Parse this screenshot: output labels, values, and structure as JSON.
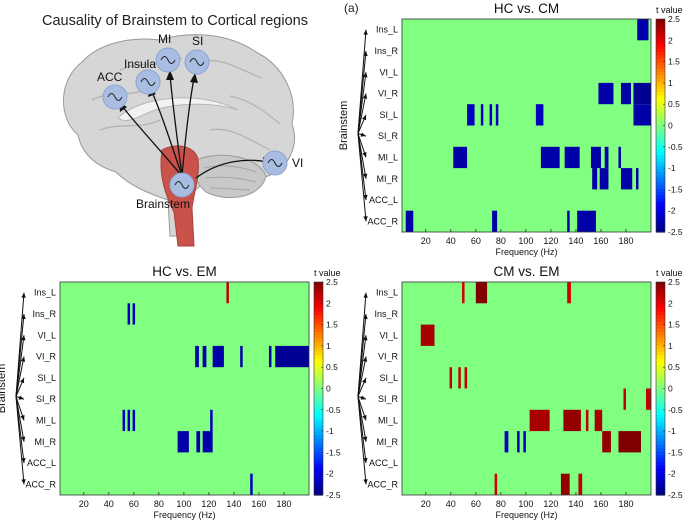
{
  "illustration": {
    "title": "Causality of Brainstem to Cortical regions",
    "panel_label": "(a)",
    "nodes": [
      "MI",
      "SI",
      "Insula",
      "ACC",
      "VI",
      "Brainstem"
    ],
    "colors": {
      "node": "#a9bde3",
      "brainstem": "#c9524a",
      "brain": "#d4d4d4",
      "arrow": "#111111"
    }
  },
  "chart_data": [
    {
      "id": "hc_cm",
      "type": "heatmap",
      "title": "HC vs. CM",
      "xlabel": "Frequency (Hz)",
      "ylabel": "Brainstem",
      "colorbar_label": "t value",
      "rows": [
        "Ins_L",
        "Ins_R",
        "VI_L",
        "VI_R",
        "SI_L",
        "SI_R",
        "MI_L",
        "MI_R",
        "ACC_L",
        "ACC_R"
      ],
      "xlim": [
        1,
        200
      ],
      "xticks": [
        20,
        40,
        60,
        80,
        100,
        120,
        140,
        160,
        180
      ],
      "clim": [
        -2.5,
        2.5
      ],
      "background_value": 0,
      "cells": [
        {
          "row": "Ins_L",
          "from": 189,
          "to": 198,
          "value": -2.3
        },
        {
          "row": "VI_R",
          "from": 158,
          "to": 170,
          "value": -2.3
        },
        {
          "row": "VI_R",
          "from": 176,
          "to": 184,
          "value": -2.3
        },
        {
          "row": "VI_R",
          "from": 186,
          "to": 200,
          "value": -2.4
        },
        {
          "row": "SI_L",
          "from": 53,
          "to": 59,
          "value": -2.2
        },
        {
          "row": "SI_L",
          "from": 64,
          "to": 66,
          "value": -2.2
        },
        {
          "row": "SI_L",
          "from": 71,
          "to": 73,
          "value": -2.2
        },
        {
          "row": "SI_L",
          "from": 76,
          "to": 78,
          "value": -2.2
        },
        {
          "row": "SI_L",
          "from": 108,
          "to": 114,
          "value": -2.2
        },
        {
          "row": "SI_L",
          "from": 186,
          "to": 200,
          "value": -2.3
        },
        {
          "row": "MI_L",
          "from": 42,
          "to": 53,
          "value": -2.3
        },
        {
          "row": "MI_L",
          "from": 112,
          "to": 127,
          "value": -2.3
        },
        {
          "row": "MI_L",
          "from": 131,
          "to": 143,
          "value": -2.3
        },
        {
          "row": "MI_L",
          "from": 152,
          "to": 160,
          "value": -2.3
        },
        {
          "row": "MI_L",
          "from": 163,
          "to": 166,
          "value": -2.3
        },
        {
          "row": "MI_L",
          "from": 174,
          "to": 176,
          "value": -2.3
        },
        {
          "row": "MI_R",
          "from": 153,
          "to": 157,
          "value": -2.3
        },
        {
          "row": "MI_R",
          "from": 159,
          "to": 166,
          "value": -2.3
        },
        {
          "row": "MI_R",
          "from": 176,
          "to": 185,
          "value": -2.3
        },
        {
          "row": "MI_R",
          "from": 188,
          "to": 190,
          "value": -2.3
        },
        {
          "row": "ACC_R",
          "from": 4,
          "to": 10,
          "value": -2.3
        },
        {
          "row": "ACC_R",
          "from": 73,
          "to": 77,
          "value": -2.3
        },
        {
          "row": "ACC_R",
          "from": 133,
          "to": 135,
          "value": -2.3
        },
        {
          "row": "ACC_R",
          "from": 141,
          "to": 156,
          "value": -2.3
        }
      ]
    },
    {
      "id": "hc_em",
      "type": "heatmap",
      "title": "HC vs. EM",
      "xlabel": "Frequency (Hz)",
      "ylabel": "Brainstem",
      "colorbar_label": "t value",
      "rows": [
        "Ins_L",
        "Ins_R",
        "VI_L",
        "VI_R",
        "SI_L",
        "SI_R",
        "MI_L",
        "MI_R",
        "ACC_L",
        "ACC_R"
      ],
      "xlim": [
        1,
        200
      ],
      "xticks": [
        20,
        40,
        60,
        80,
        100,
        120,
        140,
        160,
        180
      ],
      "clim": [
        -2.5,
        2.5
      ],
      "background_value": 0,
      "cells": [
        {
          "row": "Ins_L",
          "from": 134,
          "to": 136,
          "value": 2.2
        },
        {
          "row": "Ins_R",
          "from": 55,
          "to": 57,
          "value": -2.2
        },
        {
          "row": "Ins_R",
          "from": 59,
          "to": 61,
          "value": -2.2
        },
        {
          "row": "VI_R",
          "from": 109,
          "to": 112,
          "value": -2.3
        },
        {
          "row": "VI_R",
          "from": 115,
          "to": 118,
          "value": -2.3
        },
        {
          "row": "VI_R",
          "from": 123,
          "to": 132,
          "value": -2.3
        },
        {
          "row": "VI_R",
          "from": 145,
          "to": 147,
          "value": -2.3
        },
        {
          "row": "VI_R",
          "from": 168,
          "to": 170,
          "value": -2.3
        },
        {
          "row": "VI_R",
          "from": 173,
          "to": 200,
          "value": -2.4
        },
        {
          "row": "MI_L",
          "from": 51,
          "to": 53,
          "value": -2.2
        },
        {
          "row": "MI_L",
          "from": 55,
          "to": 57,
          "value": -2.2
        },
        {
          "row": "MI_L",
          "from": 59,
          "to": 61,
          "value": -2.2
        },
        {
          "row": "MI_L",
          "from": 121,
          "to": 123,
          "value": -2.2
        },
        {
          "row": "MI_R",
          "from": 95,
          "to": 104,
          "value": -2.3
        },
        {
          "row": "MI_R",
          "from": 110,
          "to": 113,
          "value": -2.3
        },
        {
          "row": "MI_R",
          "from": 115,
          "to": 123,
          "value": -2.3
        },
        {
          "row": "ACC_R",
          "from": 153,
          "to": 155,
          "value": -2.2
        }
      ]
    },
    {
      "id": "cm_em",
      "type": "heatmap",
      "title": "CM vs. EM",
      "xlabel": "Frequency (Hz)",
      "ylabel": "",
      "colorbar_label": "t value",
      "rows": [
        "Ins_L",
        "Ins_R",
        "VI_L",
        "VI_R",
        "SI_L",
        "SI_R",
        "MI_L",
        "MI_R",
        "ACC_L",
        "ACC_R"
      ],
      "xlim": [
        1,
        200
      ],
      "xticks": [
        20,
        40,
        60,
        80,
        100,
        120,
        140,
        160,
        180
      ],
      "clim": [
        -2.5,
        2.5
      ],
      "background_value": 0,
      "cells": [
        {
          "row": "Ins_L",
          "from": 49,
          "to": 51,
          "value": 2.1
        },
        {
          "row": "Ins_L",
          "from": 60,
          "to": 69,
          "value": 2.5
        },
        {
          "row": "Ins_L",
          "from": 133,
          "to": 136,
          "value": 2.1
        },
        {
          "row": "VI_L",
          "from": 16,
          "to": 27,
          "value": 2.3
        },
        {
          "row": "SI_L",
          "from": 39,
          "to": 41,
          "value": 2.2
        },
        {
          "row": "SI_L",
          "from": 46,
          "to": 48,
          "value": 2.2
        },
        {
          "row": "SI_L",
          "from": 51,
          "to": 53,
          "value": 2.2
        },
        {
          "row": "SI_R",
          "from": 178,
          "to": 180,
          "value": 2.2
        },
        {
          "row": "SI_R",
          "from": 196,
          "to": 200,
          "value": 2.2
        },
        {
          "row": "MI_L",
          "from": 103,
          "to": 119,
          "value": 2.3
        },
        {
          "row": "MI_L",
          "from": 130,
          "to": 144,
          "value": 2.4
        },
        {
          "row": "MI_L",
          "from": 148,
          "to": 150,
          "value": 2.2
        },
        {
          "row": "MI_L",
          "from": 155,
          "to": 161,
          "value": 2.3
        },
        {
          "row": "MI_R",
          "from": 83,
          "to": 86,
          "value": -2.2
        },
        {
          "row": "MI_R",
          "from": 93,
          "to": 95,
          "value": -2.2
        },
        {
          "row": "MI_R",
          "from": 98,
          "to": 100,
          "value": -2.2
        },
        {
          "row": "MI_R",
          "from": 161,
          "to": 168,
          "value": 2.4
        },
        {
          "row": "MI_R",
          "from": 174,
          "to": 192,
          "value": 2.5
        },
        {
          "row": "ACC_R",
          "from": 75,
          "to": 77,
          "value": 2.1
        },
        {
          "row": "ACC_R",
          "from": 128,
          "to": 135,
          "value": 2.4
        },
        {
          "row": "ACC_R",
          "from": 142,
          "to": 145,
          "value": 2.2
        }
      ]
    }
  ]
}
